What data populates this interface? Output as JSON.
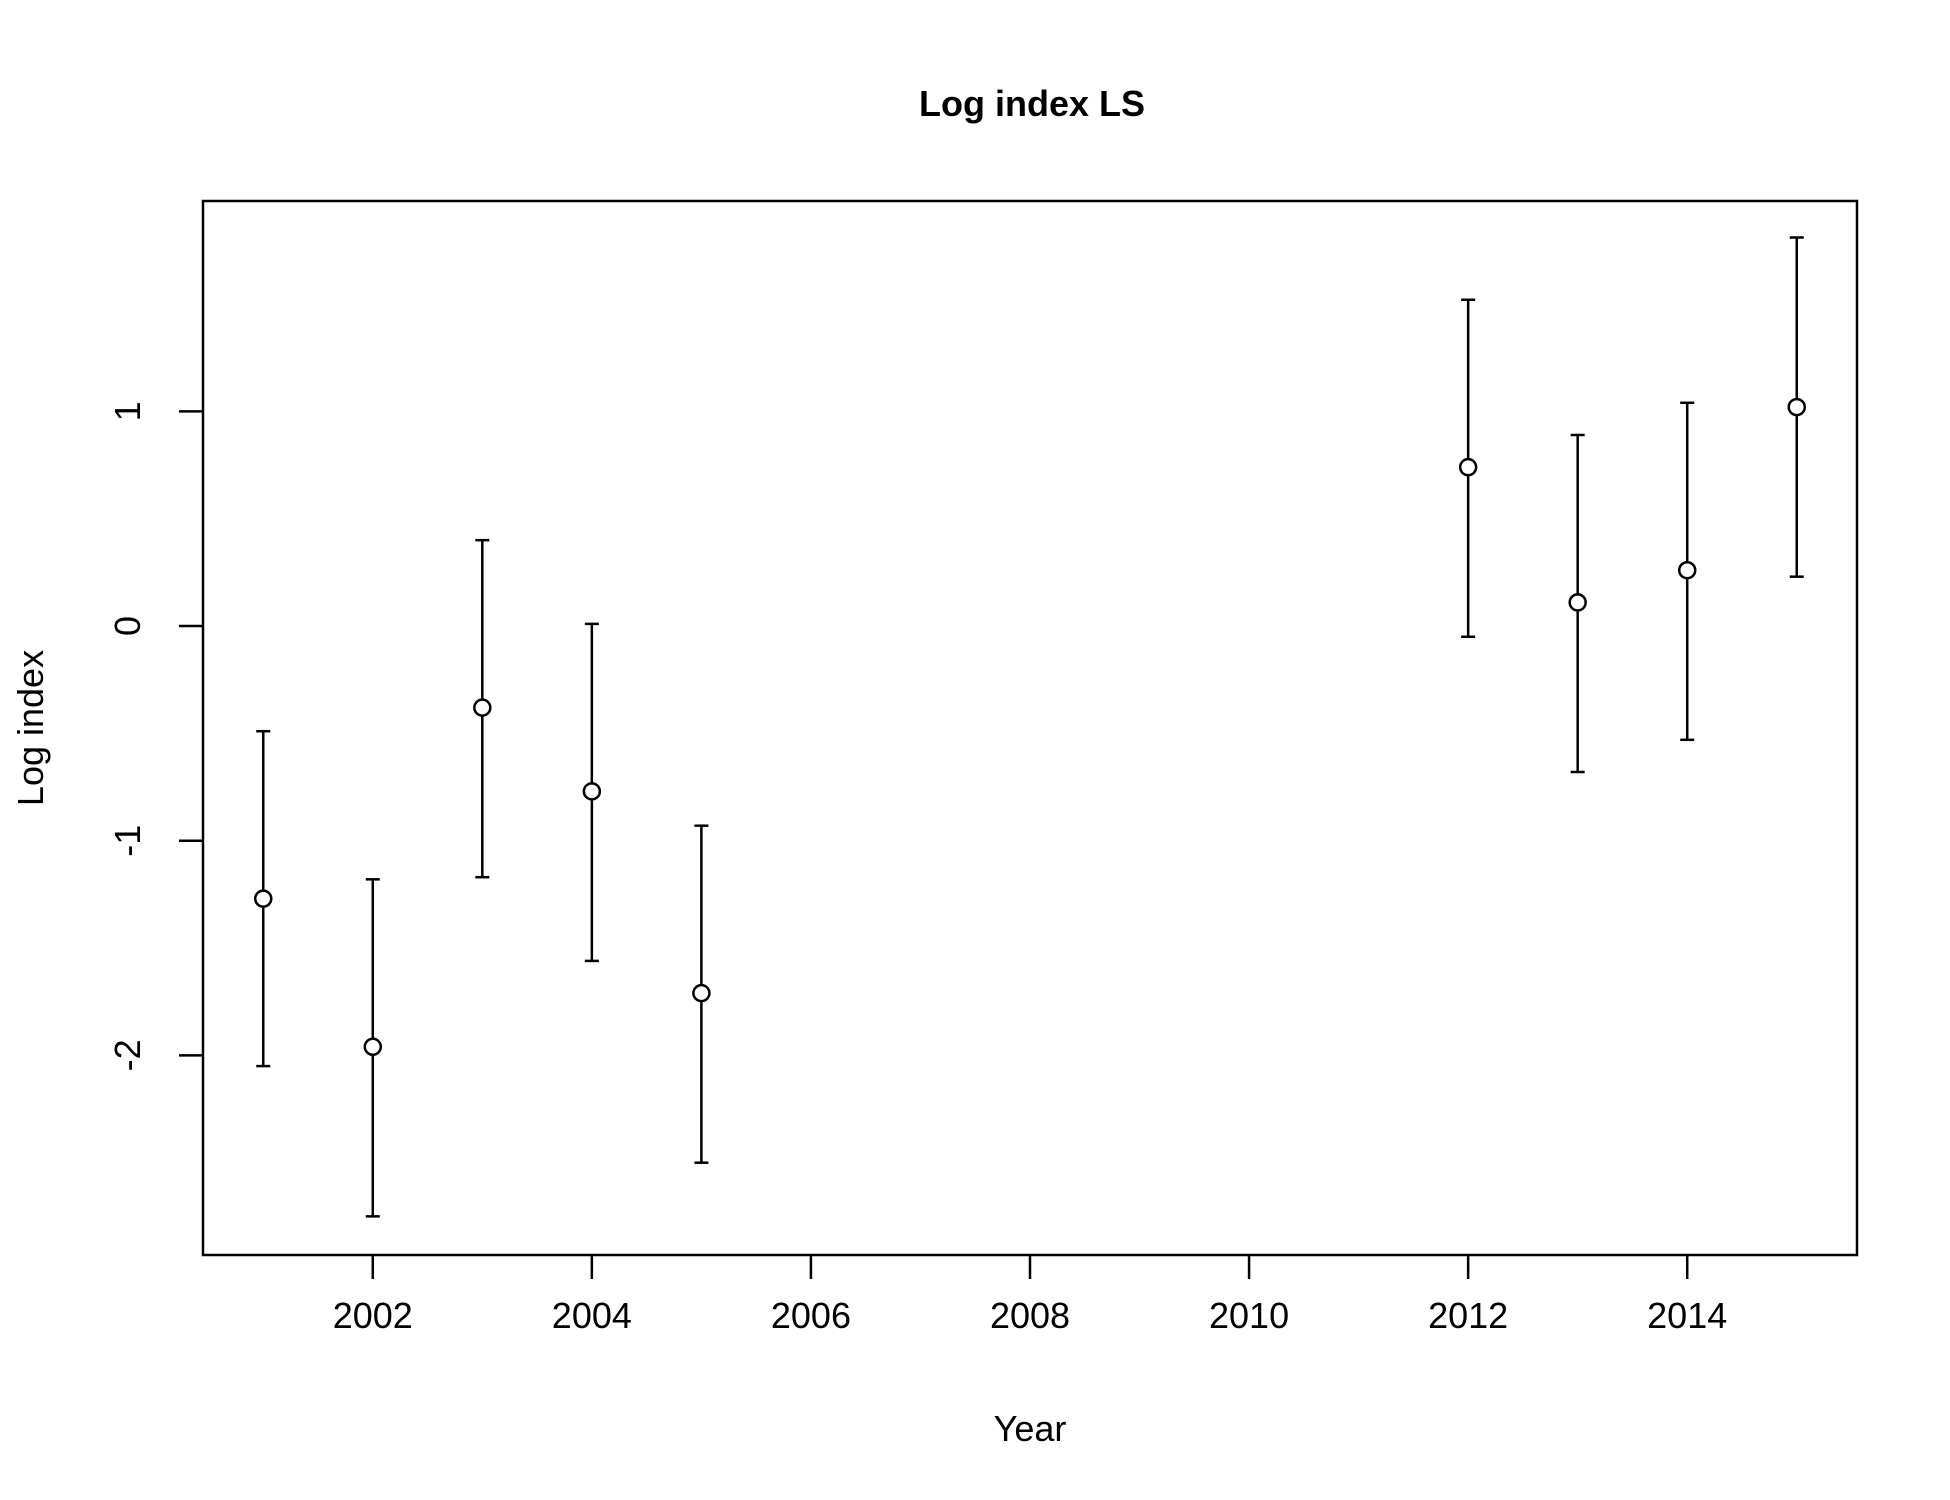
{
  "chart_data": {
    "type": "scatter",
    "title": "Log index LS",
    "xlabel": "Year",
    "ylabel": "Log index",
    "xlim": [
      2000.45,
      2015.55
    ],
    "ylim": [
      -2.93,
      1.98
    ],
    "x_ticks": [
      2002,
      2004,
      2006,
      2008,
      2010,
      2012,
      2014
    ],
    "y_ticks": [
      -2,
      -1,
      0,
      1
    ],
    "x_tick_labels": [
      "2002",
      "2004",
      "2006",
      "2008",
      "2010",
      "2012",
      "2014"
    ],
    "y_tick_labels": [
      "-2",
      "-1",
      "0",
      "1"
    ],
    "grid": false,
    "legend": "none",
    "error_bars": true,
    "series": [
      {
        "x": [
          2001,
          2002,
          2003,
          2004,
          2005,
          2012,
          2013,
          2014,
          2015
        ],
        "y": [
          -1.27,
          -1.96,
          -0.38,
          -0.77,
          -1.71,
          0.74,
          0.11,
          0.26,
          1.02
        ],
        "lower": [
          -2.05,
          -2.75,
          -1.17,
          -1.56,
          -2.5,
          -0.05,
          -0.68,
          -0.53,
          0.23
        ],
        "upper": [
          -0.49,
          -1.18,
          0.4,
          0.01,
          -0.93,
          1.52,
          0.89,
          1.04,
          1.81
        ]
      }
    ]
  }
}
